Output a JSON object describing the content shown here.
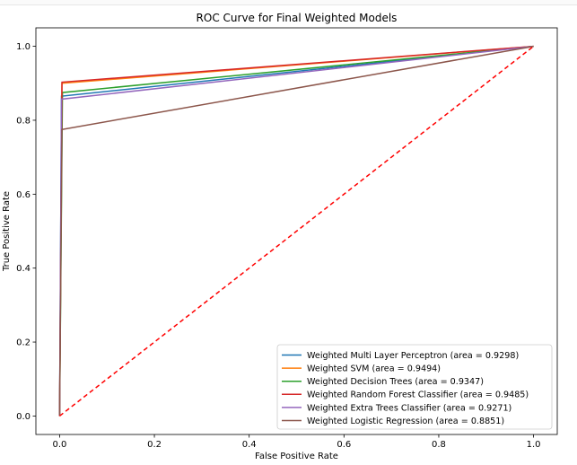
{
  "chart_data": {
    "type": "line",
    "title": "ROC Curve for Final Weighted Models",
    "xlabel": "False Positive Rate",
    "ylabel": "True Positive Rate",
    "xlim": [
      -0.05,
      1.05
    ],
    "ylim": [
      -0.05,
      1.05
    ],
    "xticks": [
      0.0,
      0.2,
      0.4,
      0.6,
      0.8,
      1.0
    ],
    "yticks": [
      0.0,
      0.2,
      0.4,
      0.6,
      0.8,
      1.0
    ],
    "xtick_labels": [
      "0.0",
      "0.2",
      "0.4",
      "0.6",
      "0.8",
      "1.0"
    ],
    "ytick_labels": [
      "0.0",
      "0.2",
      "0.4",
      "0.6",
      "0.8",
      "1.0"
    ],
    "grid": false,
    "legend_position": "lower-right",
    "series": [
      {
        "name": "Weighted Multi Layer Perceptron (area = 0.9298)",
        "color": "#1f77b4",
        "x": [
          0.0,
          0.004,
          1.0
        ],
        "y": [
          0.0,
          0.865,
          1.0
        ]
      },
      {
        "name": "Weighted SVM (area = 0.9494)",
        "color": "#ff7f0e",
        "x": [
          0.0,
          0.005,
          1.0
        ],
        "y": [
          0.0,
          0.9,
          1.0
        ]
      },
      {
        "name": "Weighted Decision Trees (area = 0.9347)",
        "color": "#2ca02c",
        "x": [
          0.0,
          0.006,
          1.0
        ],
        "y": [
          0.0,
          0.875,
          1.0
        ]
      },
      {
        "name": "Weighted Random Forest Classifier (area = 0.9485)",
        "color": "#d62728",
        "x": [
          0.0,
          0.005,
          1.0
        ],
        "y": [
          0.0,
          0.903,
          1.0
        ]
      },
      {
        "name": "Weighted Extra Trees Classifier (area = 0.9271)",
        "color": "#9467bd",
        "x": [
          0.0,
          0.004,
          1.0
        ],
        "y": [
          0.0,
          0.857,
          1.0
        ]
      },
      {
        "name": "Weighted Logistic Regression (area = 0.8851)",
        "color": "#8c564b",
        "x": [
          0.0,
          0.005,
          1.0
        ],
        "y": [
          0.0,
          0.775,
          1.0
        ]
      }
    ],
    "reference_line": {
      "x": [
        0.0,
        1.0
      ],
      "y": [
        0.0,
        1.0
      ],
      "color": "#ff0000",
      "style": "dashed"
    }
  }
}
